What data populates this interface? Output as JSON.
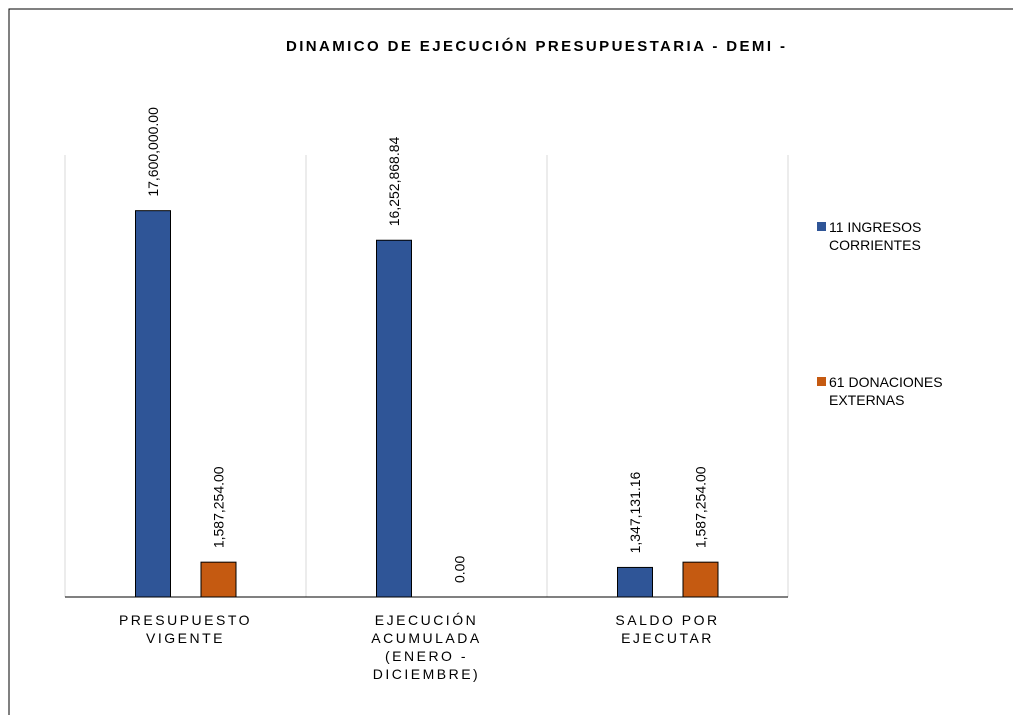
{
  "chart_data": {
    "type": "bar",
    "title": "DINAMICO DE EJECUCIÓN PRESUPUESTARIA - DEMI -",
    "categories": [
      "PRESUPUESTO VIGENTE",
      "EJECUCIÓN ACUMULADA (ENERO - DICIEMBRE)",
      "SALDO POR EJECUTAR"
    ],
    "series": [
      {
        "name": "11 INGRESOS CORRIENTES",
        "color": "#2f5597",
        "values": [
          17600000,
          16252868.84,
          1347131.16
        ],
        "value_labels": [
          "17,600,000.00",
          "16,252,868.84",
          "1,347,131.16"
        ]
      },
      {
        "name": "61 DONACIONES EXTERNAS",
        "color": "#c55a11",
        "values": [
          1587254,
          0,
          1587254
        ],
        "value_labels": [
          "1,587,254.00",
          "0.00",
          "1,587,254.00"
        ]
      }
    ],
    "ylim": [
      0,
      20000000
    ],
    "legend": "right"
  }
}
